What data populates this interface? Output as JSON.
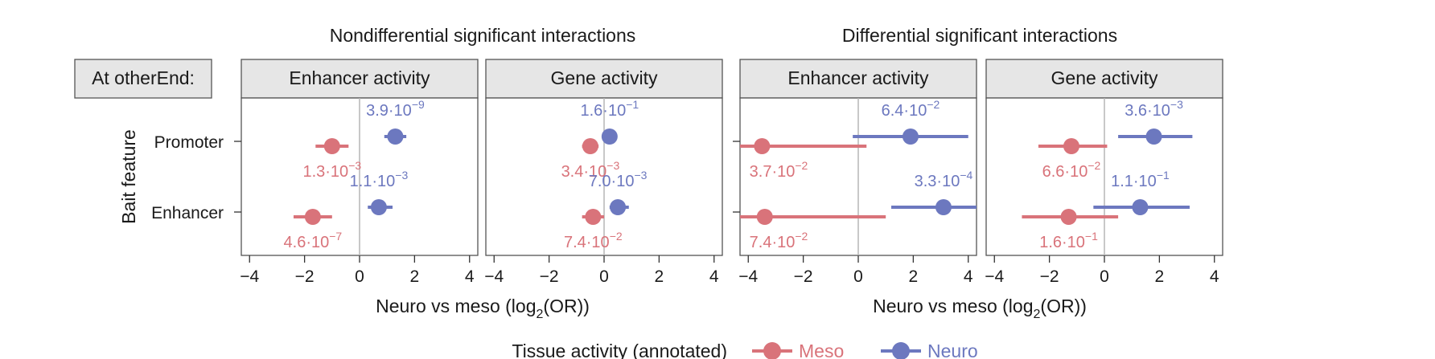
{
  "colors": {
    "meso": "#d9737a",
    "neuro": "#6c78bf",
    "panel_header_bg": "#e6e6e6",
    "panel_border": "#555555",
    "zero_line": "#b5b5b5"
  },
  "labels": {
    "row_header": "At otherEnd:",
    "y_axis_title": "Bait feature",
    "group_left_title": "Nondifferential significant interactions",
    "group_right_title": "Differential significant interactions",
    "xlabel_prefix": "Neuro vs meso (log",
    "xlabel_sub": "2",
    "xlabel_suffix": "(OR))",
    "legend_title": "Tissue activity (annotated)"
  },
  "chart_data": {
    "type": "scatter",
    "xlim": [
      -4.3,
      4.3
    ],
    "xticks": [
      -4,
      -2,
      0,
      2,
      4
    ],
    "xtick_labels": [
      "−4",
      "−2",
      "0",
      "2",
      "4"
    ],
    "categories": [
      "Promoter",
      "Enhancer"
    ],
    "legend": [
      {
        "name": "Meso",
        "color_key": "meso"
      },
      {
        "name": "Neuro",
        "color_key": "neuro"
      }
    ],
    "panels": [
      {
        "title": "Enhancer activity",
        "group": "Nondifferential significant interactions",
        "points": [
          {
            "category": "Promoter",
            "series": "Neuro",
            "x": 1.3,
            "lo": 0.9,
            "hi": 1.7,
            "p_base": "3.9·10",
            "p_exp": "−9"
          },
          {
            "category": "Promoter",
            "series": "Meso",
            "x": -1.0,
            "lo": -1.6,
            "hi": -0.4,
            "p_base": "1.3·10",
            "p_exp": "−3"
          },
          {
            "category": "Enhancer",
            "series": "Neuro",
            "x": 0.7,
            "lo": 0.3,
            "hi": 1.2,
            "p_base": "1.1·10",
            "p_exp": "−3"
          },
          {
            "category": "Enhancer",
            "series": "Meso",
            "x": -1.7,
            "lo": -2.4,
            "hi": -1.0,
            "p_base": "4.6·10",
            "p_exp": "−7"
          }
        ]
      },
      {
        "title": "Gene activity",
        "group": "Nondifferential significant interactions",
        "points": [
          {
            "category": "Promoter",
            "series": "Neuro",
            "x": 0.2,
            "lo": 0.0,
            "hi": 0.4,
            "p_base": "1.6·10",
            "p_exp": "−1"
          },
          {
            "category": "Promoter",
            "series": "Meso",
            "x": -0.5,
            "lo": -0.8,
            "hi": -0.2,
            "p_base": "3.4·10",
            "p_exp": "−3"
          },
          {
            "category": "Enhancer",
            "series": "Neuro",
            "x": 0.5,
            "lo": 0.2,
            "hi": 0.9,
            "p_base": "7.0·10",
            "p_exp": "−3"
          },
          {
            "category": "Enhancer",
            "series": "Meso",
            "x": -0.4,
            "lo": -0.8,
            "hi": 0.0,
            "p_base": "7.4·10",
            "p_exp": "−2"
          }
        ]
      },
      {
        "title": "Enhancer activity",
        "group": "Differential significant interactions",
        "points": [
          {
            "category": "Promoter",
            "series": "Neuro",
            "x": 1.9,
            "lo": -0.2,
            "hi": 4.0,
            "p_base": "6.4·10",
            "p_exp": "−2"
          },
          {
            "category": "Promoter",
            "series": "Meso",
            "x": -3.5,
            "lo": -4.3,
            "hi": 0.3,
            "p_base": "3.7·10",
            "p_exp": "−2"
          },
          {
            "category": "Enhancer",
            "series": "Neuro",
            "x": 3.1,
            "lo": 1.2,
            "hi": 4.3,
            "p_base": "3.3·10",
            "p_exp": "−4"
          },
          {
            "category": "Enhancer",
            "series": "Meso",
            "x": -3.4,
            "lo": -4.3,
            "hi": 1.0,
            "p_base": "7.4·10",
            "p_exp": "−2"
          }
        ]
      },
      {
        "title": "Gene activity",
        "group": "Differential significant interactions",
        "points": [
          {
            "category": "Promoter",
            "series": "Neuro",
            "x": 1.8,
            "lo": 0.5,
            "hi": 3.2,
            "p_base": "3.6·10",
            "p_exp": "−3"
          },
          {
            "category": "Promoter",
            "series": "Meso",
            "x": -1.2,
            "lo": -2.4,
            "hi": 0.1,
            "p_base": "6.6·10",
            "p_exp": "−2"
          },
          {
            "category": "Enhancer",
            "series": "Neuro",
            "x": 1.3,
            "lo": -0.4,
            "hi": 3.1,
            "p_base": "1.1·10",
            "p_exp": "−1"
          },
          {
            "category": "Enhancer",
            "series": "Meso",
            "x": -1.3,
            "lo": -3.0,
            "hi": 0.5,
            "p_base": "1.6·10",
            "p_exp": "−1"
          }
        ]
      }
    ]
  }
}
